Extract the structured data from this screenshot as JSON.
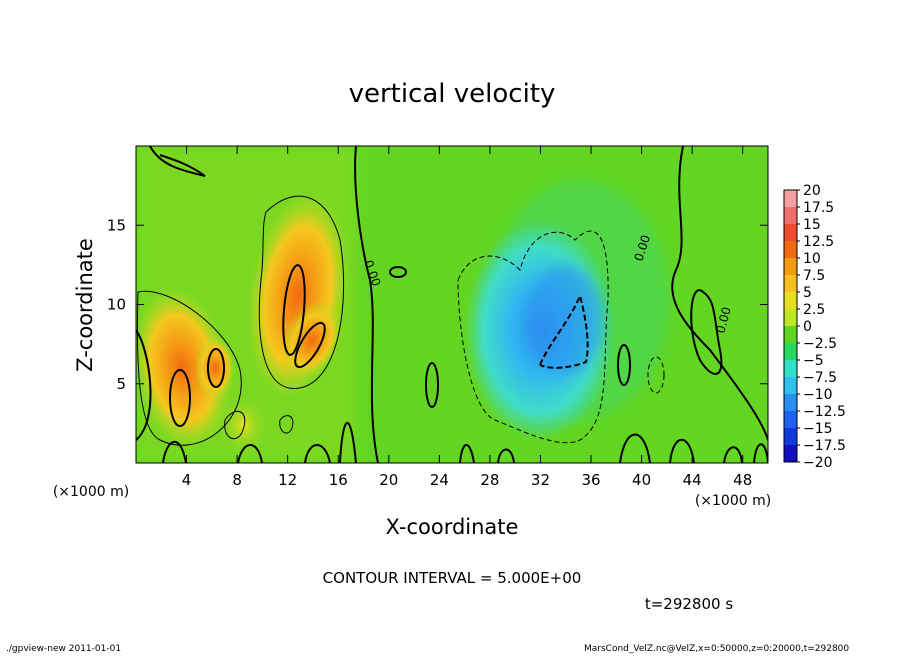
{
  "chart_data": {
    "type": "heatmap",
    "title": "vertical velocity",
    "xlabel": "X-coordinate",
    "ylabel": "Z-coordinate",
    "x_unit_label": "(×1000 m)",
    "y_unit_label": "(×1000 m)",
    "xlim": [
      0,
      50
    ],
    "ylim": [
      0,
      20
    ],
    "x_ticks": [
      4,
      8,
      12,
      16,
      20,
      24,
      28,
      32,
      36,
      40,
      44,
      48
    ],
    "y_ticks": [
      5,
      10,
      15
    ],
    "colorbar": {
      "levels": [
        20,
        17.5,
        15,
        12.5,
        10,
        7.5,
        5,
        2.5,
        0,
        -2.5,
        -5,
        -7.5,
        -10,
        -12.5,
        -15,
        -17.5,
        -20
      ],
      "colors": [
        "#f4a0a0",
        "#f07070",
        "#ee4a30",
        "#f26a10",
        "#f59a10",
        "#f5c020",
        "#e6df20",
        "#bde820",
        "#5ed520",
        "#28d860",
        "#30e0c8",
        "#30c0f0",
        "#2890f0",
        "#2060f0",
        "#1038e0",
        "#1010c0",
        "#6010b0"
      ]
    },
    "contour_labels": [
      "0.00",
      "0.00",
      "0.00"
    ],
    "features": [
      {
        "kind": "updraft",
        "x": 3.5,
        "z": 6.0,
        "peak": 12.5
      },
      {
        "kind": "updraft",
        "x": 6.5,
        "z": 6.5,
        "peak": 10
      },
      {
        "kind": "updraft",
        "x": 12.5,
        "z": 10.5,
        "peak": 12.5
      },
      {
        "kind": "updraft",
        "x": 13.8,
        "z": 7.5,
        "peak": 10
      },
      {
        "kind": "downdraft",
        "x": 33.0,
        "z": 8.0,
        "peak": -10
      }
    ]
  },
  "footer": {
    "contour_interval": "CONTOUR INTERVAL = 5.000E+00",
    "time_label": "t=292800 s",
    "program_info": "./gpview-new   2011-01-01",
    "file_info": "MarsCond_VelZ.nc@VelZ,x=0:50000,z=0:20000,t=292800"
  }
}
